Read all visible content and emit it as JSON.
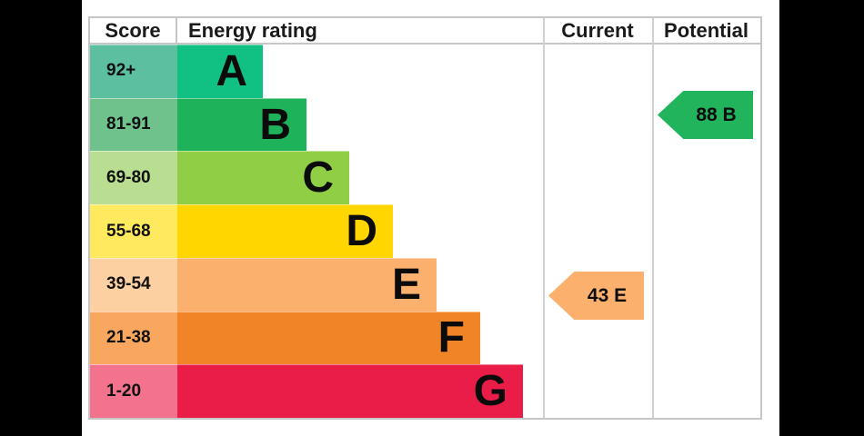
{
  "header": {
    "score": "Score",
    "energy_rating": "Energy rating",
    "current": "Current",
    "potential": "Potential"
  },
  "bands": [
    {
      "score": "92+",
      "letter": "A",
      "bar_color": "#11c183",
      "cell_color": "#5cc0a0"
    },
    {
      "score": "81-91",
      "letter": "B",
      "bar_color": "#1eb35a",
      "cell_color": "#70c28d"
    },
    {
      "score": "69-80",
      "letter": "C",
      "bar_color": "#8fce45",
      "cell_color": "#b9dd91"
    },
    {
      "score": "55-68",
      "letter": "D",
      "bar_color": "#ffd600",
      "cell_color": "#ffe95f"
    },
    {
      "score": "39-54",
      "letter": "E",
      "bar_color": "#fbb06e",
      "cell_color": "#fcd0a1"
    },
    {
      "score": "21-38",
      "letter": "F",
      "bar_color": "#f08426",
      "cell_color": "#f9a75f"
    },
    {
      "score": "1-20",
      "letter": "G",
      "bar_color": "#ea1c48",
      "cell_color": "#f3738f"
    }
  ],
  "current": {
    "label": "43 E",
    "value": 43,
    "band": "E",
    "color": "#fbb06e"
  },
  "potential": {
    "label": "88 B",
    "value": 88,
    "band": "B",
    "color": "#22b45c"
  },
  "colors": {
    "background": "#000000",
    "panel": "#ffffff",
    "border": "#c6c6c6"
  },
  "chart_data": {
    "type": "bar",
    "title": "EPC Energy rating chart",
    "categories": [
      "A",
      "B",
      "C",
      "D",
      "E",
      "F",
      "G"
    ],
    "score_ranges": [
      "92+",
      "81-91",
      "69-80",
      "55-68",
      "39-54",
      "21-38",
      "1-20"
    ],
    "values": [
      1,
      2,
      3,
      4,
      5,
      6,
      7
    ],
    "columns": [
      "Score",
      "Energy rating",
      "Current",
      "Potential"
    ],
    "current": {
      "score": 43,
      "band": "E"
    },
    "potential": {
      "score": 88,
      "band": "B"
    },
    "legend_position": "none",
    "grid": false
  }
}
